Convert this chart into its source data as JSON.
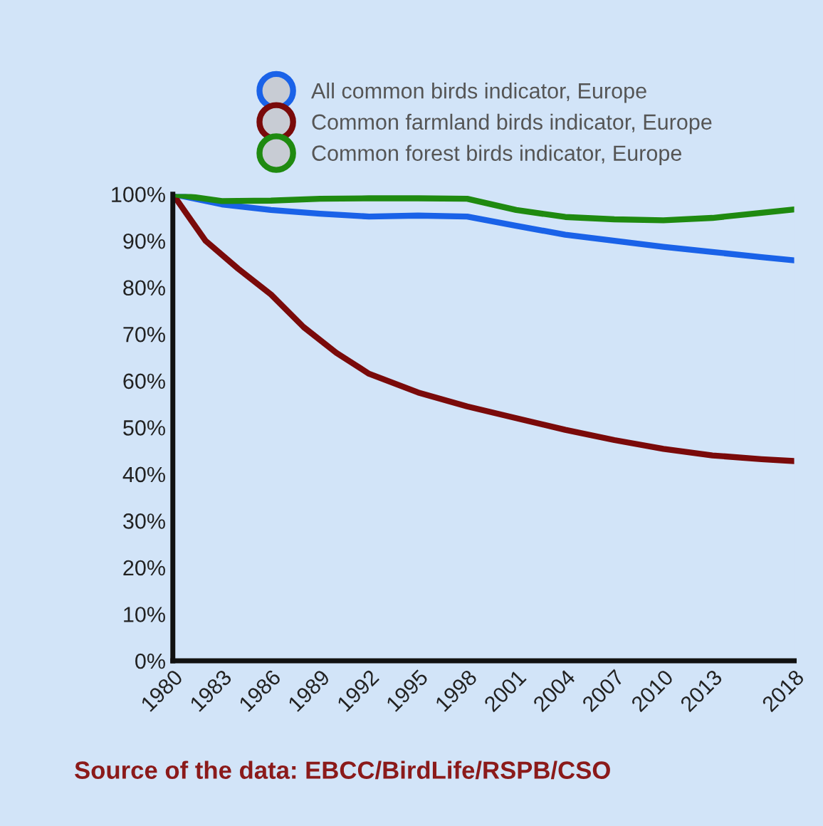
{
  "chart_data": {
    "type": "line",
    "xlim": [
      1980,
      2018
    ],
    "xticks": [
      1980,
      1983,
      1986,
      1989,
      1992,
      1995,
      1998,
      2001,
      2004,
      2007,
      2010,
      2013,
      2018
    ],
    "ylim": [
      0,
      100
    ],
    "yticks": [
      {
        "value": 0,
        "label": "0%"
      },
      {
        "value": 10,
        "label": "10%"
      },
      {
        "value": 20,
        "label": "20%"
      },
      {
        "value": 30,
        "label": "30%"
      },
      {
        "value": 40,
        "label": "40%"
      },
      {
        "value": 50,
        "label": "50%"
      },
      {
        "value": 60,
        "label": "60%"
      },
      {
        "value": 70,
        "label": "70%"
      },
      {
        "value": 80,
        "label": "80%"
      },
      {
        "value": 90,
        "label": "90%"
      },
      {
        "value": 100,
        "label": "100%"
      }
    ],
    "series": [
      {
        "name": "All common birds indicator, Europe",
        "color": "#1a62e8",
        "x": [
          1980,
          1983,
          1986,
          1989,
          1992,
          1995,
          1998,
          2001,
          2004,
          2007,
          2010,
          2013,
          2016,
          2018
        ],
        "values": [
          100,
          97.8,
          96.6,
          95.8,
          95.2,
          95.4,
          95.2,
          93.2,
          91.3,
          90,
          88.7,
          87.6,
          86.5,
          85.8
        ]
      },
      {
        "name": "Common farmland birds indicator, Europe",
        "color": "#7a0a0a",
        "x": [
          1980,
          1982,
          1984,
          1986,
          1988,
          1990,
          1992,
          1995,
          1998,
          2001,
          2004,
          2007,
          2010,
          2013,
          2016,
          2018
        ],
        "values": [
          100,
          90,
          84,
          78.5,
          71.5,
          66,
          61.5,
          57.5,
          54.5,
          52,
          49.5,
          47.3,
          45.4,
          44,
          43.2,
          42.8
        ]
      },
      {
        "name": "Common forest birds indicator, Europe",
        "color": "#1f8a10",
        "x": [
          1980,
          1983,
          1986,
          1989,
          1992,
          1995,
          1998,
          2001,
          2004,
          2007,
          2010,
          2013,
          2016,
          2018
        ],
        "values": [
          100,
          98.5,
          98.6,
          99,
          99.1,
          99.1,
          99,
          96.6,
          95.1,
          94.6,
          94.4,
          94.9,
          96,
          96.7
        ]
      }
    ],
    "marker": "none",
    "line_style": "solid",
    "grid": false,
    "legend": "top",
    "annotations": [
      "Source of the data: EBCC/BirdLife/RSPB/CSO"
    ]
  }
}
